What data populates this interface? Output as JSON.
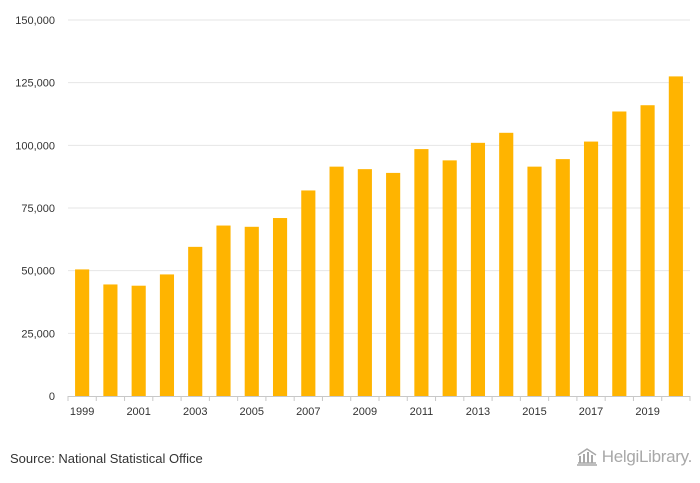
{
  "chart_data": {
    "type": "bar",
    "title": "",
    "xlabel": "",
    "ylabel": "",
    "ylim": [
      0,
      150000
    ],
    "yticks": [
      0,
      25000,
      50000,
      75000,
      100000,
      125000,
      150000
    ],
    "ytick_labels": [
      "0",
      "25,000",
      "50,000",
      "75,000",
      "100,000",
      "125,000",
      "150,000"
    ],
    "categories": [
      "1999",
      "2000",
      "2001",
      "2002",
      "2003",
      "2004",
      "2005",
      "2006",
      "2007",
      "2008",
      "2009",
      "2010",
      "2011",
      "2012",
      "2013",
      "2014",
      "2015",
      "2016",
      "2017",
      "2018",
      "2019",
      "2020"
    ],
    "xtick_labels": [
      "1999",
      "2001",
      "2003",
      "2005",
      "2007",
      "2009",
      "2011",
      "2013",
      "2015",
      "2017",
      "2019"
    ],
    "values": [
      50500,
      44500,
      44000,
      48500,
      59500,
      68000,
      67500,
      71000,
      82000,
      91500,
      90500,
      89000,
      98500,
      94000,
      101000,
      105000,
      91500,
      94500,
      101500,
      113500,
      116000,
      127500
    ],
    "bar_color": "#FFB400",
    "grid": true
  },
  "footer": {
    "source": "Source: National Statistical Office",
    "brand": "HelgiLibrary."
  }
}
